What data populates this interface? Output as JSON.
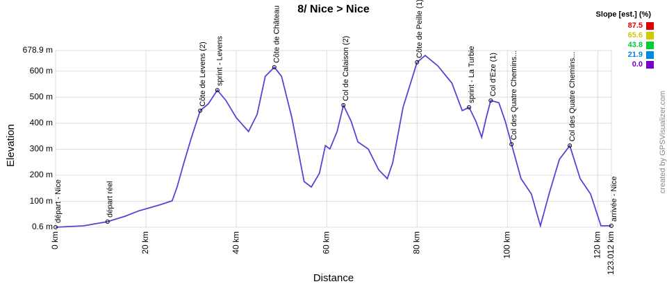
{
  "chart_data": {
    "type": "line",
    "title": "8/ Nice > Nice",
    "x_label": "Distance",
    "y_label": "Elevation",
    "credit": "created by GPSVisualizer.com",
    "xlim": [
      0,
      123.012
    ],
    "ylim": [
      0.6,
      678.9
    ],
    "xticks": [
      {
        "value": 0,
        "label": "0 km"
      },
      {
        "value": 20,
        "label": "20 km"
      },
      {
        "value": 40,
        "label": "40 km"
      },
      {
        "value": 60,
        "label": "60 km"
      },
      {
        "value": 80,
        "label": "80 km"
      },
      {
        "value": 100,
        "label": "100 km"
      },
      {
        "value": 120,
        "label": "120 km"
      },
      {
        "value": 123.012,
        "label": "123.012 km"
      }
    ],
    "yticks": [
      {
        "value": 0.6,
        "label": "0.6 m"
      },
      {
        "value": 100,
        "label": "100 m"
      },
      {
        "value": 200,
        "label": "200 m"
      },
      {
        "value": 300,
        "label": "300 m"
      },
      {
        "value": 400,
        "label": "400 m"
      },
      {
        "value": 500,
        "label": "500 m"
      },
      {
        "value": 600,
        "label": "600 m"
      },
      {
        "value": 678.9,
        "label": "678.9 m"
      }
    ],
    "grid": true,
    "color": "#5b3fd6",
    "x": [
      0,
      6.2,
      11.5,
      15.4,
      18.5,
      23,
      25.8,
      26.9,
      28.4,
      30,
      32,
      33.8,
      35.8,
      37.7,
      40,
      42.7,
      44.6,
      46.4,
      48.4,
      50,
      52.3,
      55,
      56.6,
      58.4,
      59.7,
      60.7,
      62.3,
      63.7,
      65.4,
      66.9,
      69.2,
      71.5,
      73.4,
      74.6,
      76.9,
      80,
      81.8,
      84.6,
      87.7,
      90,
      91.5,
      93,
      94.3,
      95.3,
      96.3,
      98.1,
      99.5,
      101,
      103,
      105.3,
      107.3,
      109.2,
      111.5,
      113.8,
      116.1,
      118.4,
      120.7,
      123
    ],
    "values": [
      0.6,
      6,
      22,
      43,
      64,
      86,
      102,
      155,
      248,
      341,
      448,
      474,
      527,
      487,
      421,
      368,
      434,
      580,
      615,
      580,
      421,
      176,
      155,
      208,
      314,
      301,
      368,
      469,
      408,
      328,
      301,
      221,
      187,
      248,
      461,
      634,
      660,
      620,
      554,
      448,
      461,
      408,
      346,
      421,
      487,
      479,
      408,
      314,
      187,
      128,
      6,
      128,
      261,
      314,
      187,
      128,
      6,
      6
    ],
    "waypoints": [
      {
        "label": "départ - Nice",
        "x": 0,
        "y": 0.6
      },
      {
        "label": "départ réel",
        "x": 11.5,
        "y": 22
      },
      {
        "label": "Côte de Levens (2)",
        "x": 32,
        "y": 448
      },
      {
        "label": "sprint - Levens",
        "x": 35.8,
        "y": 527
      },
      {
        "label": "Côte de Château",
        "x": 48.4,
        "y": 615
      },
      {
        "label": "Col de Calaison (2)",
        "x": 63.7,
        "y": 469
      },
      {
        "label": "Côte de Peille (1)",
        "x": 80,
        "y": 634
      },
      {
        "label": "sprint - La Turbie",
        "x": 91.5,
        "y": 461
      },
      {
        "label": "Col d'Eze (1)",
        "x": 96.3,
        "y": 487
      },
      {
        "label": "Col des Quatre Chemins...",
        "x": 100.9,
        "y": 319
      },
      {
        "label": "Col des Quatre Chemins...",
        "x": 113.8,
        "y": 314
      },
      {
        "label": "arrivée - Nice",
        "x": 123,
        "y": 6
      }
    ],
    "legend": {
      "title": "Slope [est.] (%)",
      "items": [
        {
          "label": "87.5",
          "color": "#dd0000"
        },
        {
          "label": "65.6",
          "color": "#cccc00"
        },
        {
          "label": "43.8",
          "color": "#00cc33"
        },
        {
          "label": "21.9",
          "color": "#0088dd"
        },
        {
          "label": "0.0",
          "color": "#7700cc"
        }
      ]
    }
  }
}
